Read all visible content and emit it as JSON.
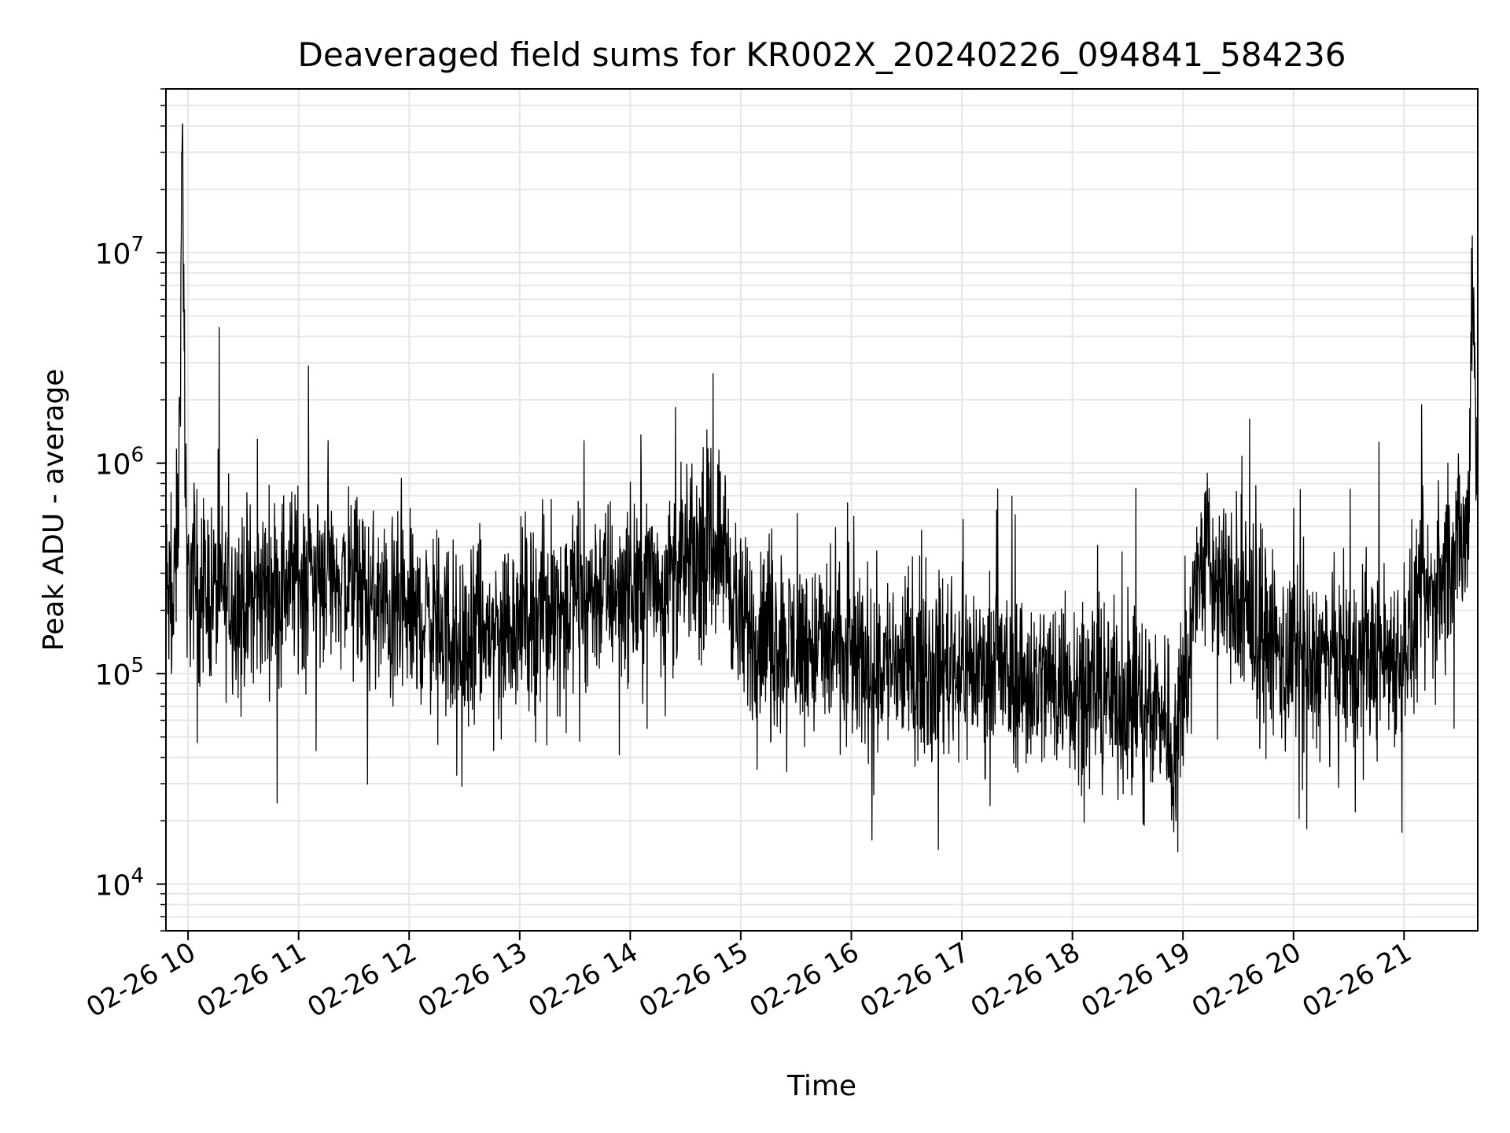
{
  "chart_data": {
    "type": "line",
    "title": "Deaveraged field sums for KR002X_20240226_094841_584236",
    "xlabel": "Time",
    "ylabel": "Peak ADU - average",
    "x_axis": {
      "kind": "time",
      "range": [
        "2024-02-26 09:48",
        "2024-02-26 21:40"
      ],
      "ticks": [
        {
          "time": "2024-02-26 10:00",
          "label": "02-26 10"
        },
        {
          "time": "2024-02-26 11:00",
          "label": "02-26 11"
        },
        {
          "time": "2024-02-26 12:00",
          "label": "02-26 12"
        },
        {
          "time": "2024-02-26 13:00",
          "label": "02-26 13"
        },
        {
          "time": "2024-02-26 14:00",
          "label": "02-26 14"
        },
        {
          "time": "2024-02-26 15:00",
          "label": "02-26 15"
        },
        {
          "time": "2024-02-26 16:00",
          "label": "02-26 16"
        },
        {
          "time": "2024-02-26 17:00",
          "label": "02-26 17"
        },
        {
          "time": "2024-02-26 18:00",
          "label": "02-26 18"
        },
        {
          "time": "2024-02-26 19:00",
          "label": "02-26 19"
        },
        {
          "time": "2024-02-26 20:00",
          "label": "02-26 20"
        },
        {
          "time": "2024-02-26 21:00",
          "label": "02-26 21"
        }
      ]
    },
    "y_axis": {
      "scale": "log",
      "range": [
        6000,
        60000000
      ],
      "ticks": [
        {
          "value": 10000,
          "base": "10",
          "exp": "4"
        },
        {
          "value": 100000,
          "base": "10",
          "exp": "5"
        },
        {
          "value": 1000000,
          "base": "10",
          "exp": "6"
        },
        {
          "value": 10000000,
          "base": "10",
          "exp": "7"
        }
      ]
    },
    "grid": true,
    "line_color": "#000000",
    "grid_color": "#e6e6e6",
    "series": [
      {
        "x": [
          "2024-02-26 09:48",
          "2024-02-26 09:52",
          "2024-02-26 09:55",
          "2024-02-26 09:57",
          "2024-02-26 09:59",
          "2024-02-26 10:10",
          "2024-02-26 10:30",
          "2024-02-26 10:45",
          "2024-02-26 11:00",
          "2024-02-26 11:15",
          "2024-02-26 11:30",
          "2024-02-26 11:45",
          "2024-02-26 12:00",
          "2024-02-26 12:15",
          "2024-02-26 12:30",
          "2024-02-26 12:40",
          "2024-02-26 13:00",
          "2024-02-26 13:20",
          "2024-02-26 13:40",
          "2024-02-26 14:05",
          "2024-02-26 14:30",
          "2024-02-26 14:50",
          "2024-02-26 15:00",
          "2024-02-26 15:30",
          "2024-02-26 16:00",
          "2024-02-26 16:30",
          "2024-02-26 17:00",
          "2024-02-26 17:30",
          "2024-02-26 18:00",
          "2024-02-26 18:30",
          "2024-02-26 18:50",
          "2024-02-26 18:55",
          "2024-02-26 19:10",
          "2024-02-26 19:30",
          "2024-02-26 19:50",
          "2024-02-26 20:00",
          "2024-02-26 20:30",
          "2024-02-26 21:00",
          "2024-02-26 21:20",
          "2024-02-26 21:35",
          "2024-02-26 21:37",
          "2024-02-26 21:40"
        ],
        "y": [
          250000,
          180000,
          700000,
          40000000,
          300000,
          250000,
          220000,
          260000,
          300000,
          320000,
          260000,
          200000,
          190000,
          180000,
          130000,
          150000,
          190000,
          210000,
          250000,
          260000,
          320000,
          450000,
          160000,
          140000,
          120000,
          110000,
          110000,
          95000,
          90000,
          75000,
          70000,
          40000,
          350000,
          200000,
          130000,
          110000,
          110000,
          130000,
          300000,
          450000,
          12000000,
          550000
        ]
      }
    ]
  }
}
